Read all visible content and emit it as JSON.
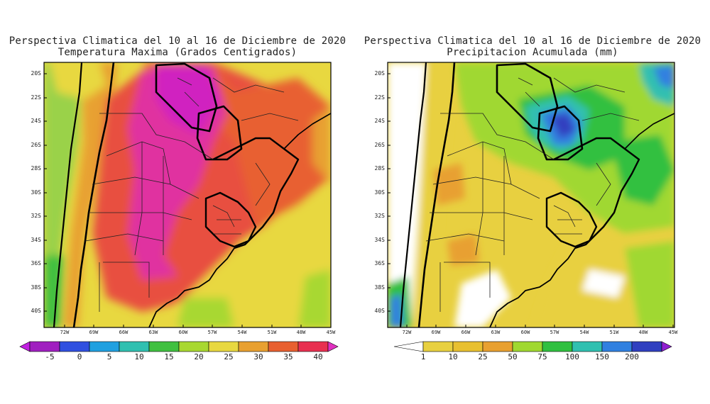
{
  "left": {
    "title_line1": "Perspectiva Climatica del 10 al 16 de Diciembre de 2020",
    "title_line2": "Temperatura Maxima (Grados Centigrados)",
    "lat_labels": [
      "20S",
      "22S",
      "24S",
      "26S",
      "28S",
      "30S",
      "32S",
      "34S",
      "36S",
      "38S",
      "40S"
    ],
    "lon_labels": [
      "72W",
      "69W",
      "66W",
      "63W",
      "60W",
      "57W",
      "54W",
      "51W",
      "48W",
      "45W"
    ],
    "colorbar": {
      "labels": [
        "-5",
        "0",
        "5",
        "10",
        "15",
        "20",
        "25",
        "30",
        "35",
        "40"
      ],
      "colors": [
        "#a020c0",
        "#3050e0",
        "#20a0e0",
        "#30c0b0",
        "#40c040",
        "#a8d830",
        "#e8d840",
        "#e8a030",
        "#e86030",
        "#e83050"
      ],
      "under_color": "#c020e0",
      "over_color": "#e030c0"
    }
  },
  "right": {
    "title_line1": "Perspectiva Climatica del 10 al 16 de Diciembre de 2020",
    "title_line2": "Precipitacion Acumulada (mm)",
    "lat_labels": [
      "20S",
      "22S",
      "24S",
      "26S",
      "28S",
      "30S",
      "32S",
      "34S",
      "36S",
      "38S",
      "40S"
    ],
    "lon_labels": [
      "72W",
      "69W",
      "66W",
      "63W",
      "60W",
      "57W",
      "54W",
      "51W",
      "48W",
      "45W"
    ],
    "colorbar": {
      "labels": [
        "1",
        "10",
        "25",
        "50",
        "75",
        "100",
        "150",
        "200"
      ],
      "colors": [
        "#f0f0f0",
        "#e8d040",
        "#e8a030",
        "#a0d830",
        "#30c040",
        "#30c0b0",
        "#3080e0",
        "#3040c0",
        "#8030c0"
      ],
      "under_color": "#ffffff",
      "over_color": "#9020d0"
    }
  }
}
